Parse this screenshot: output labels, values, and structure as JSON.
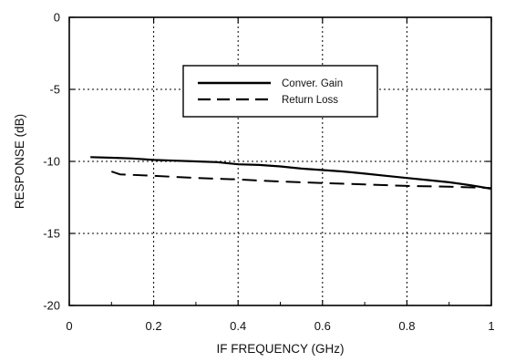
{
  "chart_data": {
    "type": "line",
    "title": "",
    "xlabel": "IF FREQUENCY (GHz)",
    "ylabel": "RESPONSE (dB)",
    "xlim": [
      0,
      1
    ],
    "ylim": [
      -20,
      0
    ],
    "xticks": [
      0,
      0.2,
      0.4,
      0.6,
      0.8,
      1
    ],
    "yticks": [
      0,
      -5,
      -10,
      -15,
      -20
    ],
    "xtick_labels": [
      "0",
      "0.2",
      "0.4",
      "0.6",
      "0.8",
      "1"
    ],
    "ytick_labels": [
      "0",
      "-5",
      "-10",
      "-15",
      "-20"
    ],
    "grid": true,
    "legend_position": "top-center",
    "series": [
      {
        "name": "Conver. Gain",
        "style": "solid",
        "color": "#000000",
        "x": [
          0.05,
          0.1,
          0.15,
          0.2,
          0.25,
          0.3,
          0.35,
          0.4,
          0.45,
          0.5,
          0.55,
          0.6,
          0.65,
          0.7,
          0.75,
          0.8,
          0.85,
          0.9,
          0.95,
          1.0
        ],
        "y": [
          -9.7,
          -9.75,
          -9.8,
          -9.9,
          -9.95,
          -10.0,
          -10.05,
          -10.2,
          -10.25,
          -10.35,
          -10.5,
          -10.6,
          -10.7,
          -10.85,
          -11.0,
          -11.15,
          -11.3,
          -11.45,
          -11.65,
          -11.9
        ]
      },
      {
        "name": "Return Loss",
        "style": "dashed",
        "color": "#000000",
        "x": [
          0.1,
          0.12,
          0.2,
          0.3,
          0.4,
          0.5,
          0.6,
          0.7,
          0.8,
          0.9,
          1.0
        ],
        "y": [
          -10.7,
          -10.9,
          -11.0,
          -11.15,
          -11.25,
          -11.4,
          -11.5,
          -11.6,
          -11.7,
          -11.75,
          -11.85
        ]
      }
    ]
  }
}
